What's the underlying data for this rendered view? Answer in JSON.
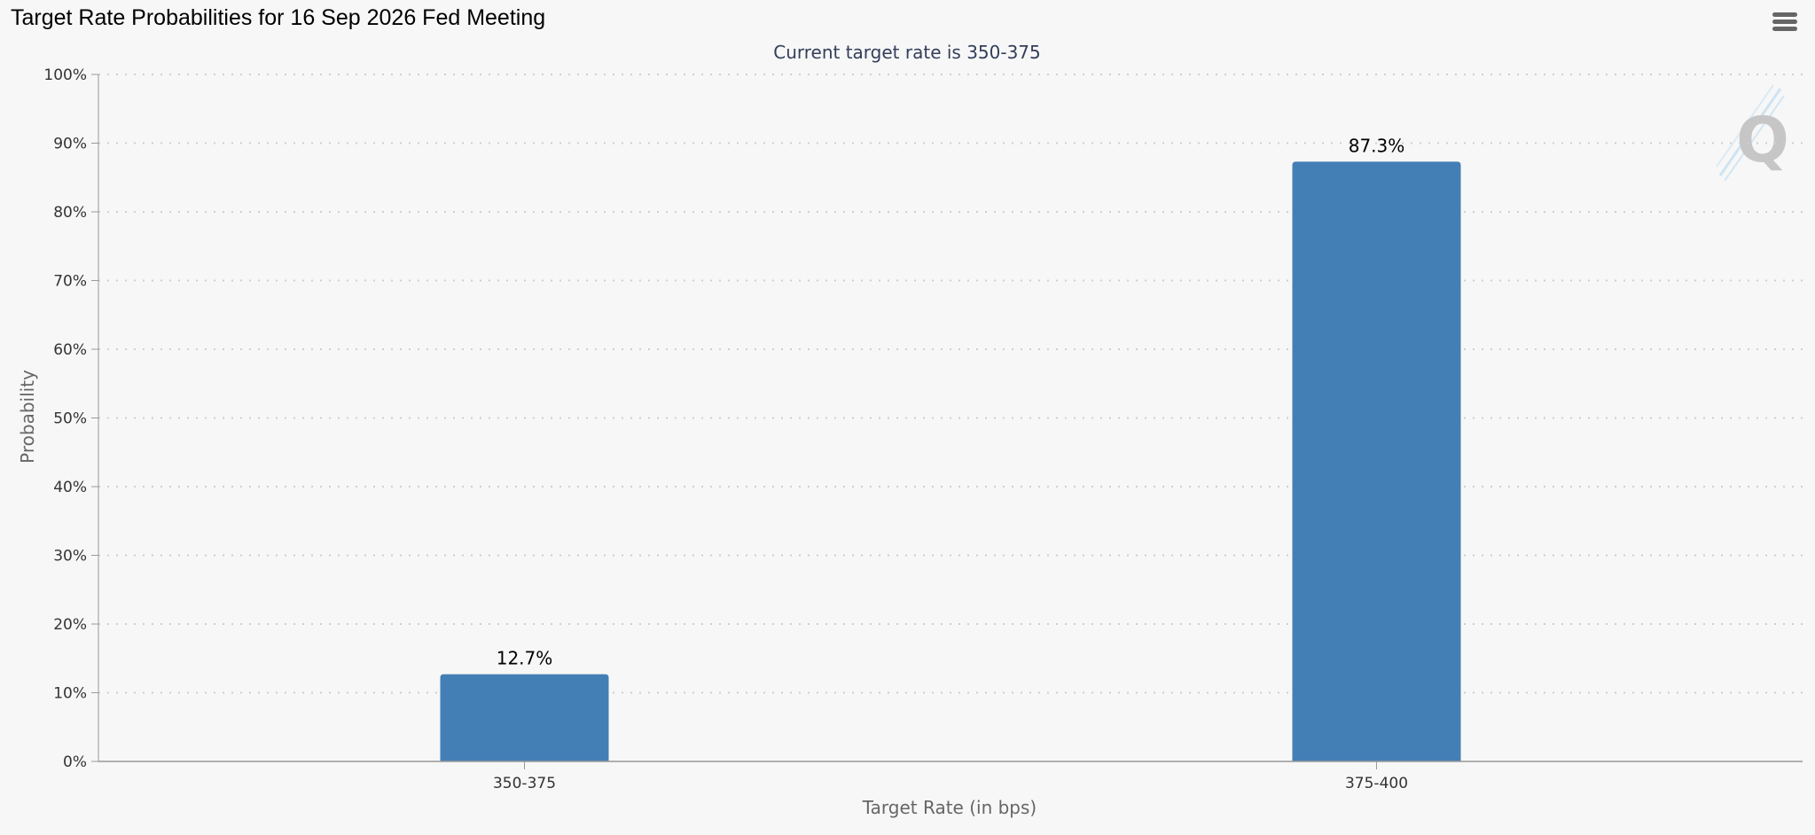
{
  "page": {
    "title": "Target Rate Probabilities for 16 Sep 2026 Fed Meeting",
    "menu_icon": "hamburger-menu-icon",
    "watermark_icon": "q-logo-watermark-icon"
  },
  "chart_data": {
    "type": "bar",
    "subtitle": "Current target rate is 350-375",
    "categories": [
      "350-375",
      "375-400"
    ],
    "series": [
      {
        "values": [
          12.7,
          87.3
        ],
        "labels": [
          "12.7%",
          "87.3%"
        ]
      }
    ],
    "xlabel": "Target Rate (in bps)",
    "ylabel": "Probability",
    "ylim": [
      0,
      100
    ],
    "yticks": [
      0,
      10,
      20,
      30,
      40,
      50,
      60,
      70,
      80,
      90,
      100
    ],
    "ytick_labels": [
      "0%",
      "10%",
      "20%",
      "30%",
      "40%",
      "50%",
      "60%",
      "70%",
      "80%",
      "90%",
      "100%"
    ],
    "grid": true,
    "legend": "none",
    "bar_color": "#437fb5"
  }
}
